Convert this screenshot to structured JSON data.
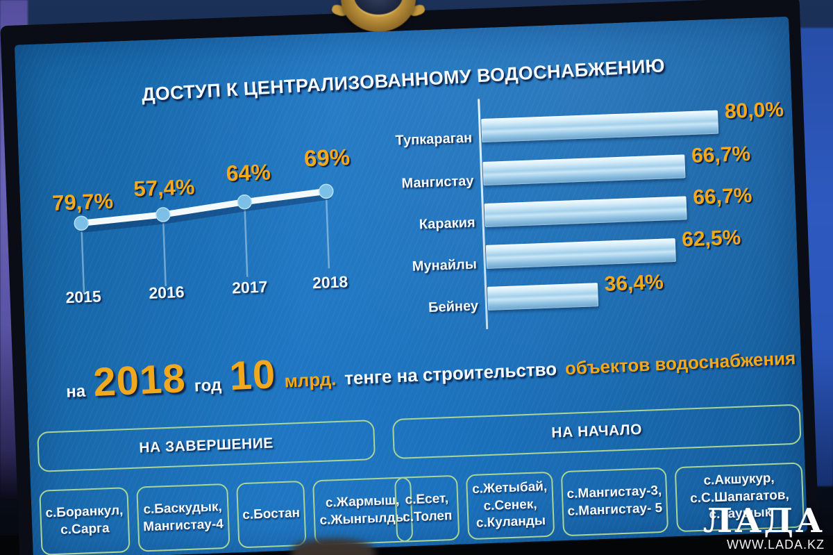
{
  "slide": {
    "title": "ДОСТУП К ЦЕНТРАЛИЗОВАННОМУ ВОДОСНАБЖЕНИЮ",
    "colors": {
      "screen_blue": "#1C70BA",
      "accent_orange": "#F2A81C",
      "bar_fill_light": "#BFE0F3",
      "box_border_green": "#A9D596",
      "text_white": "#FFFFFF"
    },
    "funding": {
      "prefix": "на",
      "year": "2018",
      "year_word": "год",
      "amount": "10",
      "unit": "млрд.",
      "middle": "тенге на строительство",
      "highlight": "объектов водоснабжения"
    },
    "sections": {
      "completion": {
        "header": "НА ЗАВЕРШЕНИЕ",
        "boxes": [
          [
            "с.Боранкул,",
            "с.Сарга"
          ],
          [
            "с.Баскудык,",
            "Мангистау-4"
          ],
          [
            "с.Бостан"
          ],
          [
            "с.Жармыш,",
            "с.Жынгылды"
          ]
        ]
      },
      "start": {
        "header": "НА НАЧАЛО",
        "boxes": [
          [
            "с.Есет,",
            "с.Толеп"
          ],
          [
            "с.Жетыбай,",
            "с.Сенек,",
            "с.Куланды"
          ],
          [
            "с.Мангистау-3,",
            "с.Мангистау- 5"
          ],
          [
            "с.Акшукур,",
            "с.С.Шапагатов,",
            "с.Таушык"
          ]
        ]
      }
    }
  },
  "chart_data": [
    {
      "type": "line",
      "title": "Доступ к централизованному водоснабжению по годам",
      "x": [
        "2015",
        "2016",
        "2017",
        "2018"
      ],
      "values": [
        79.7,
        57.4,
        64,
        69
      ],
      "point_labels": [
        "79,7%",
        "57,4%",
        "64%",
        "69%"
      ],
      "legend_position": "none",
      "grid": false,
      "visual_note": "rendered as a steadily rising white line with blue markers and drop pins; orange labels above points, white year ticks below"
    },
    {
      "type": "bar",
      "orientation": "horizontal",
      "categories": [
        "Тупкараган",
        "Мангистау",
        "Каракия",
        "Мунайлы",
        "Бейнеу"
      ],
      "values": [
        80.0,
        66.7,
        66.7,
        62.5,
        36.4
      ],
      "value_labels": [
        "80,0%",
        "66,7%",
        "66,7%",
        "62,5%",
        "36,4%"
      ],
      "xlim": [
        0,
        100
      ],
      "grid": false,
      "legend_position": "none"
    }
  ],
  "watermark": {
    "brand": "ЛАДА",
    "url": "WWW.LADA.KZ"
  }
}
